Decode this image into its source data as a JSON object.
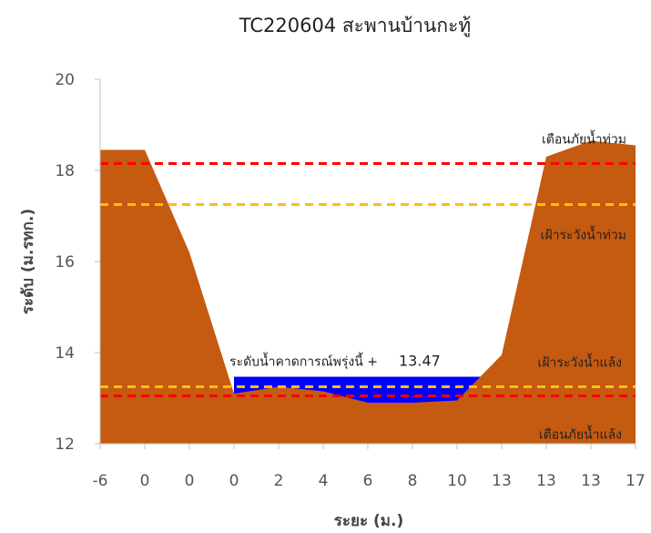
{
  "chart_data": {
    "type": "area",
    "title": "TC220604 สะพานบ้านกะทู้",
    "xlabel": "ระยะ (ม.)",
    "ylabel": "ระดับ (ม.รทก.)",
    "ylim": [
      12,
      20
    ],
    "yticks": [
      12,
      14,
      16,
      18,
      20
    ],
    "categories": [
      "-6",
      "0",
      "0",
      "0",
      "2",
      "4",
      "6",
      "8",
      "10",
      "13",
      "13",
      "13",
      "17"
    ],
    "grid": false,
    "ground": {
      "name": "",
      "color": "#c55a11",
      "x": [
        -6,
        -5,
        -4,
        -3,
        -2,
        -1,
        0,
        1,
        2,
        3,
        4,
        5,
        6
      ],
      "y": [
        18.45,
        18.45,
        16.2,
        13.1,
        13.25,
        13.15,
        12.9,
        12.9,
        12.95,
        13.95,
        18.3,
        18.65,
        18.55
      ]
    },
    "water": {
      "label": "ระดับน้ำคาดการณ์พรุ่งนี้ +",
      "value": 13.47,
      "value_text": "13.47",
      "color": "#0000ff"
    },
    "thresholds": [
      {
        "label": "เตือนภัยน้ำท่วม",
        "value": 18.15,
        "color": "#ff0000"
      },
      {
        "label": "เฝ้าระวังน้ำท่วม",
        "value": 17.25,
        "color": "#ffc000"
      },
      {
        "label": "เฝ้าระวังน้ำแล้ง",
        "value": 13.25,
        "color": "#ffc000"
      },
      {
        "label": "เตือนภัยน้ำแล้ง",
        "value": 13.05,
        "color": "#ff0000"
      }
    ]
  }
}
